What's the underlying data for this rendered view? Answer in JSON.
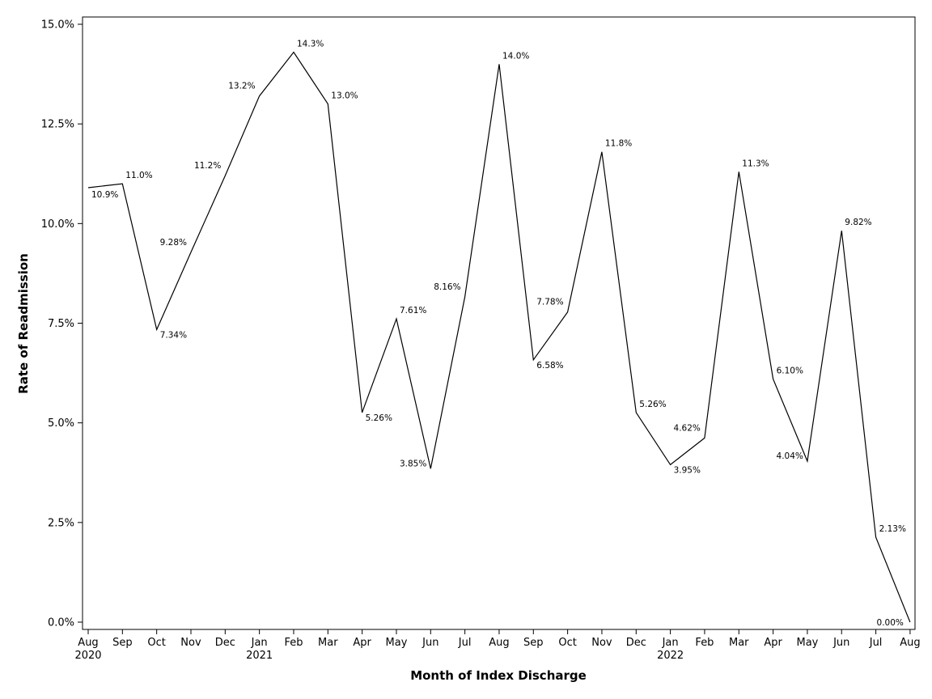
{
  "chart_data": {
    "type": "line",
    "xlabel": "Month of Index Discharge",
    "ylabel": "Rate of Readmission",
    "ylim": [
      0,
      15
    ],
    "y_ticks": [
      "0.0%",
      "2.5%",
      "5.0%",
      "7.5%",
      "10.0%",
      "12.5%",
      "15.0%"
    ],
    "grid": false,
    "line_color": "#000000",
    "x": [
      "Aug",
      "Sep",
      "Oct",
      "Nov",
      "Dec",
      "Jan",
      "Feb",
      "Mar",
      "Apr",
      "May",
      "Jun",
      "Jul",
      "Aug",
      "Sep",
      "Oct",
      "Nov",
      "Dec",
      "Jan",
      "Feb",
      "Mar",
      "Apr",
      "May",
      "Jun",
      "Jul",
      "Aug"
    ],
    "x_year_labels": [
      "2020",
      "",
      "",
      "",
      "",
      "2021",
      "",
      "",
      "",
      "",
      "",
      "",
      "",
      "",
      "",
      "",
      "",
      "2022",
      "",
      "",
      "",
      "",
      "",
      "",
      ""
    ],
    "series": [
      {
        "values": [
          10.9,
          11.0,
          7.34,
          9.28,
          11.2,
          13.2,
          14.3,
          13.0,
          5.26,
          7.61,
          3.85,
          8.16,
          14.0,
          6.58,
          7.78,
          11.8,
          5.26,
          3.95,
          4.62,
          11.3,
          6.1,
          4.04,
          9.82,
          2.13,
          0.0
        ],
        "labels": [
          "10.9%",
          "11.0%",
          "7.34%",
          "9.28%",
          "11.2%",
          "13.2%",
          "14.3%",
          "13.0%",
          "5.26%",
          "7.61%",
          "3.85%",
          "8.16%",
          "14.0%",
          "6.58%",
          "7.78%",
          "11.8%",
          "5.26%",
          "3.95%",
          "4.62%",
          "11.3%",
          "6.10%",
          "4.04%",
          "9.82%",
          "2.13%",
          "0.00%"
        ]
      }
    ]
  }
}
